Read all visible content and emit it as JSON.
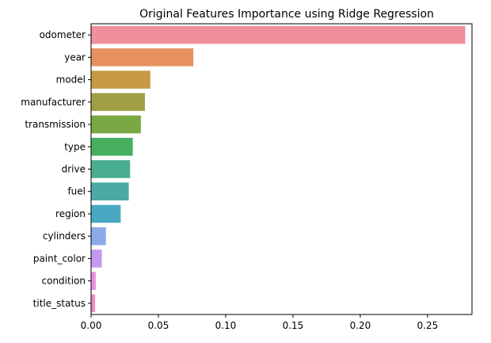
{
  "chart_data": {
    "type": "bar",
    "orientation": "horizontal",
    "title": "Original Features Importance using Ridge Regression",
    "xlabel": "",
    "ylabel": "",
    "xlim": [
      0,
      0.283
    ],
    "xticks": [
      0.0,
      0.05,
      0.1,
      0.15,
      0.2,
      0.25
    ],
    "xtick_labels": [
      "0.00",
      "0.05",
      "0.10",
      "0.15",
      "0.20",
      "0.25"
    ],
    "grid": false,
    "categories": [
      "odometer",
      "year",
      "model",
      "manufacturer",
      "transmission",
      "type",
      "drive",
      "fuel",
      "region",
      "cylinders",
      "paint_color",
      "condition",
      "title_status"
    ],
    "values": [
      0.278,
      0.076,
      0.044,
      0.04,
      0.037,
      0.031,
      0.029,
      0.028,
      0.022,
      0.011,
      0.008,
      0.0035,
      0.003
    ],
    "colors": [
      "#f08f9e",
      "#e8915e",
      "#c69a45",
      "#a19f45",
      "#7aa844",
      "#46b05e",
      "#48ad8f",
      "#49aaa4",
      "#4aa9c2",
      "#8aaae8",
      "#c49af0",
      "#ec8ee0",
      "#f08cbf"
    ]
  }
}
